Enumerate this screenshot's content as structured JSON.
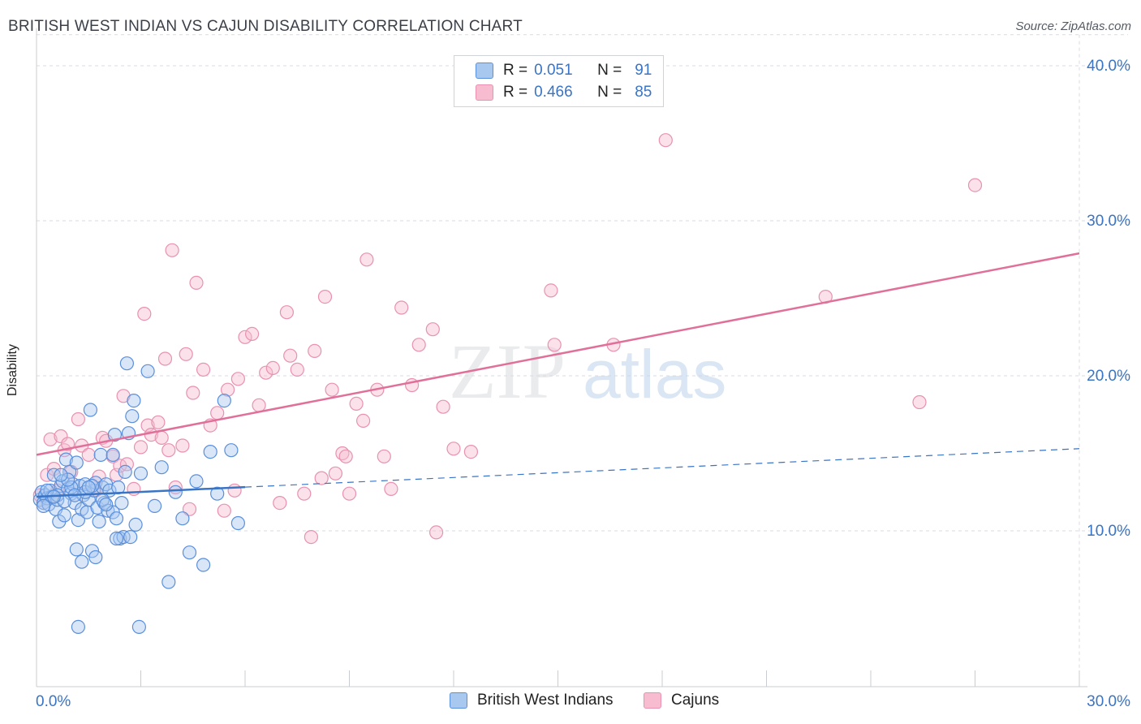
{
  "header": {
    "title": "BRITISH WEST INDIAN VS CAJUN DISABILITY CORRELATION CHART",
    "source": "Source: ZipAtlas.com"
  },
  "watermark": {
    "zip": "ZIP",
    "atlas": "atlas"
  },
  "legend": {
    "rows": [
      {
        "r_label": "R =",
        "r_value": "0.051",
        "n_label": "N =",
        "n_value": "91"
      },
      {
        "r_label": "R =",
        "r_value": "0.466",
        "n_label": "N =",
        "n_value": "85"
      }
    ]
  },
  "bottom_legend": {
    "series1": "British West Indians",
    "series2": "Cajuns"
  },
  "colors": {
    "blue_fill": "#a9c8f0",
    "blue_stroke": "#5a8fdc",
    "blue_line": "#3a74c4",
    "pink_fill": "#f7bcd0",
    "pink_stroke": "#e891b0",
    "pink_line": "#e07099",
    "axis_text": "#3a74c4",
    "grid": "#d8dbe0"
  },
  "chart_data": {
    "type": "scatter",
    "title": "BRITISH WEST INDIAN VS CAJUN DISABILITY CORRELATION CHART",
    "xlabel": "",
    "ylabel": "Disability",
    "xlim": [
      0,
      30
    ],
    "ylim": [
      0,
      42
    ],
    "x_tick_labels": [
      "0.0%",
      "30.0%"
    ],
    "y_ticks": [
      10,
      20,
      30,
      40
    ],
    "y_tick_labels": [
      "10.0%",
      "20.0%",
      "30.0%",
      "40.0%"
    ],
    "grid": true,
    "legend_position": "top-center",
    "series": [
      {
        "name": "British West Indians",
        "r": 0.051,
        "n": 91,
        "trend": {
          "x0": 0,
          "y0": 12.2,
          "x1": 30,
          "y1": 15.3,
          "solid_until_x": 6
        },
        "points": [
          [
            0.1,
            12.0
          ],
          [
            0.15,
            12.5
          ],
          [
            0.2,
            11.8
          ],
          [
            0.25,
            12.3
          ],
          [
            0.3,
            12.1
          ],
          [
            0.35,
            11.7
          ],
          [
            0.4,
            12.6
          ],
          [
            0.45,
            12.2
          ],
          [
            0.5,
            13.6
          ],
          [
            0.55,
            11.4
          ],
          [
            0.6,
            12.0
          ],
          [
            0.65,
            10.6
          ],
          [
            0.7,
            12.9
          ],
          [
            0.75,
            13.2
          ],
          [
            0.8,
            11.0
          ],
          [
            0.85,
            14.6
          ],
          [
            0.9,
            12.7
          ],
          [
            0.95,
            13.8
          ],
          [
            1.0,
            12.4
          ],
          [
            1.05,
            13.0
          ],
          [
            1.1,
            11.8
          ],
          [
            1.15,
            14.4
          ],
          [
            1.2,
            10.7
          ],
          [
            1.25,
            12.9
          ],
          [
            1.3,
            11.4
          ],
          [
            1.35,
            12.3
          ],
          [
            1.4,
            13.0
          ],
          [
            1.45,
            11.2
          ],
          [
            1.5,
            12.0
          ],
          [
            1.55,
            17.8
          ],
          [
            1.6,
            8.7
          ],
          [
            1.65,
            12.6
          ],
          [
            1.7,
            13.1
          ],
          [
            1.75,
            11.5
          ],
          [
            1.8,
            10.6
          ],
          [
            1.85,
            14.9
          ],
          [
            1.9,
            12.8
          ],
          [
            1.95,
            11.8
          ],
          [
            2.0,
            13.0
          ],
          [
            2.05,
            11.3
          ],
          [
            2.1,
            12.6
          ],
          [
            2.2,
            11.2
          ],
          [
            2.25,
            16.2
          ],
          [
            2.3,
            10.8
          ],
          [
            2.35,
            12.8
          ],
          [
            2.4,
            9.5
          ],
          [
            2.45,
            11.8
          ],
          [
            2.5,
            9.6
          ],
          [
            2.55,
            13.8
          ],
          [
            2.6,
            20.8
          ],
          [
            2.65,
            16.3
          ],
          [
            2.7,
            9.6
          ],
          [
            2.75,
            17.4
          ],
          [
            2.8,
            18.4
          ],
          [
            2.85,
            10.4
          ],
          [
            3.0,
            13.7
          ],
          [
            3.2,
            20.3
          ],
          [
            3.4,
            11.6
          ],
          [
            3.6,
            14.1
          ],
          [
            3.8,
            6.7
          ],
          [
            4.0,
            12.5
          ],
          [
            4.2,
            10.8
          ],
          [
            4.4,
            8.6
          ],
          [
            4.6,
            13.2
          ],
          [
            4.8,
            7.8
          ],
          [
            5.0,
            15.1
          ],
          [
            5.2,
            12.4
          ],
          [
            5.4,
            18.4
          ],
          [
            5.6,
            15.2
          ],
          [
            5.8,
            10.5
          ],
          [
            1.15,
            8.8
          ],
          [
            1.3,
            8.0
          ],
          [
            1.7,
            8.3
          ],
          [
            2.2,
            14.9
          ],
          [
            1.0,
            12.8
          ],
          [
            0.6,
            12.3
          ],
          [
            0.3,
            12.6
          ],
          [
            0.2,
            11.6
          ],
          [
            1.2,
            3.8
          ],
          [
            2.95,
            3.8
          ],
          [
            1.4,
            12.5
          ],
          [
            1.9,
            12.0
          ],
          [
            2.3,
            9.5
          ],
          [
            0.9,
            13.3
          ],
          [
            1.1,
            12.3
          ],
          [
            0.8,
            11.9
          ],
          [
            1.6,
            12.9
          ],
          [
            2.0,
            11.7
          ],
          [
            0.5,
            12.2
          ],
          [
            0.7,
            13.6
          ],
          [
            1.5,
            12.8
          ]
        ]
      },
      {
        "name": "Cajuns",
        "r": 0.466,
        "n": 85,
        "trend": {
          "x0": 0,
          "y0": 14.9,
          "x1": 30,
          "y1": 27.9
        },
        "points": [
          [
            0.1,
            12.3
          ],
          [
            0.2,
            11.8
          ],
          [
            0.3,
            13.6
          ],
          [
            0.4,
            15.9
          ],
          [
            0.5,
            14.0
          ],
          [
            0.6,
            12.6
          ],
          [
            0.7,
            16.1
          ],
          [
            0.8,
            15.2
          ],
          [
            0.9,
            15.6
          ],
          [
            1.0,
            13.8
          ],
          [
            1.2,
            17.2
          ],
          [
            1.3,
            15.5
          ],
          [
            1.5,
            14.9
          ],
          [
            1.7,
            12.6
          ],
          [
            1.8,
            13.5
          ],
          [
            1.9,
            16.0
          ],
          [
            2.0,
            15.8
          ],
          [
            2.2,
            14.8
          ],
          [
            2.3,
            13.6
          ],
          [
            2.4,
            14.2
          ],
          [
            2.5,
            18.7
          ],
          [
            2.6,
            14.3
          ],
          [
            2.8,
            12.7
          ],
          [
            3.0,
            15.4
          ],
          [
            3.1,
            24.0
          ],
          [
            3.2,
            16.8
          ],
          [
            3.3,
            16.2
          ],
          [
            3.5,
            17.0
          ],
          [
            3.6,
            16.0
          ],
          [
            3.7,
            21.1
          ],
          [
            3.8,
            15.2
          ],
          [
            3.9,
            28.1
          ],
          [
            4.0,
            12.8
          ],
          [
            4.2,
            15.5
          ],
          [
            4.3,
            21.4
          ],
          [
            4.4,
            11.4
          ],
          [
            4.5,
            18.9
          ],
          [
            4.6,
            26.0
          ],
          [
            4.8,
            20.4
          ],
          [
            5.0,
            16.8
          ],
          [
            5.2,
            17.6
          ],
          [
            5.4,
            11.3
          ],
          [
            5.5,
            19.1
          ],
          [
            5.7,
            12.6
          ],
          [
            5.8,
            19.8
          ],
          [
            6.0,
            22.5
          ],
          [
            6.2,
            22.7
          ],
          [
            6.4,
            18.1
          ],
          [
            6.6,
            20.2
          ],
          [
            6.8,
            20.5
          ],
          [
            7.0,
            11.8
          ],
          [
            7.2,
            24.1
          ],
          [
            7.3,
            21.3
          ],
          [
            7.5,
            20.4
          ],
          [
            7.7,
            12.4
          ],
          [
            7.9,
            9.6
          ],
          [
            8.0,
            21.6
          ],
          [
            8.2,
            13.4
          ],
          [
            8.3,
            25.1
          ],
          [
            8.5,
            19.1
          ],
          [
            8.6,
            13.7
          ],
          [
            8.8,
            15.0
          ],
          [
            9.0,
            12.4
          ],
          [
            9.2,
            18.2
          ],
          [
            9.4,
            17.1
          ],
          [
            9.5,
            27.5
          ],
          [
            9.8,
            19.1
          ],
          [
            10.0,
            14.8
          ],
          [
            10.2,
            12.7
          ],
          [
            10.5,
            24.4
          ],
          [
            10.8,
            19.4
          ],
          [
            11.0,
            22.0
          ],
          [
            11.4,
            23.0
          ],
          [
            11.5,
            9.9
          ],
          [
            11.7,
            18.0
          ],
          [
            12.0,
            15.3
          ],
          [
            12.5,
            15.1
          ],
          [
            14.8,
            25.5
          ],
          [
            14.9,
            22.0
          ],
          [
            16.6,
            22.0
          ],
          [
            18.1,
            35.2
          ],
          [
            22.7,
            25.1
          ],
          [
            25.4,
            18.3
          ],
          [
            27.0,
            32.3
          ],
          [
            8.9,
            14.8
          ]
        ]
      }
    ]
  }
}
